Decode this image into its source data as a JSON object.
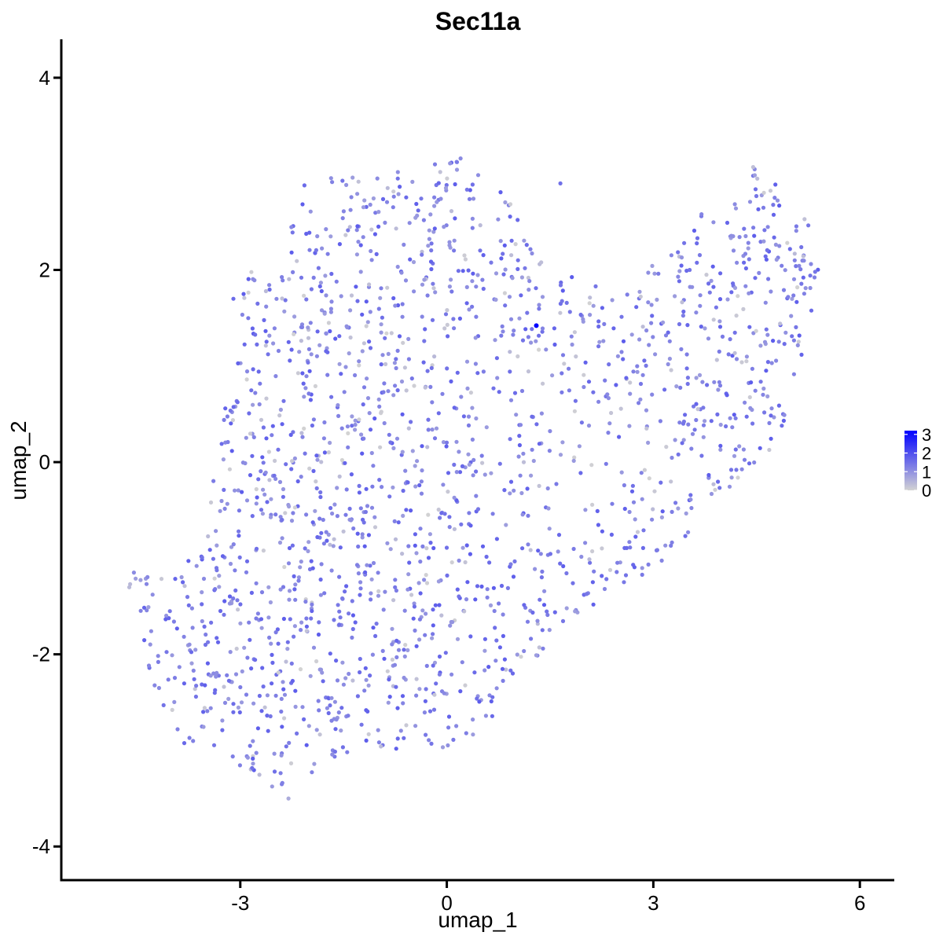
{
  "chart_data": {
    "type": "scatter",
    "title": "Sec11a",
    "xlabel": "umap_1",
    "ylabel": "umap_2",
    "xlim": [
      -5.6,
      6.5
    ],
    "ylim": [
      -4.35,
      4.4
    ],
    "x_ticks": [
      -3,
      0,
      3,
      6
    ],
    "y_ticks": [
      -4,
      -2,
      0,
      2,
      4
    ],
    "x_tick_labels": [
      "-3",
      "0",
      "3",
      "6"
    ],
    "y_tick_labels": [
      "-4",
      "-2",
      "0",
      "2",
      "4"
    ],
    "grid": false,
    "color_scale": {
      "low": "#d3d3d3",
      "high": "#0000ff",
      "min": 0,
      "max": 3.2,
      "breaks": [
        0,
        1,
        2,
        3
      ],
      "labels": [
        "0",
        "1",
        "2",
        "3"
      ],
      "legend_position": "right"
    },
    "n_points_approx": 1900,
    "highlighted_point": {
      "x": 1.3,
      "y": 1.42,
      "value": 3.2
    },
    "points_sample": [
      {
        "x": 0.2,
        "y": 3.16,
        "value": 1.1
      },
      {
        "x": 4.45,
        "y": 3.07,
        "value": 0.3
      },
      {
        "x": -4.6,
        "y": -1.27,
        "value": 0.4
      },
      {
        "x": -2.3,
        "y": -3.5,
        "value": 0.6
      },
      {
        "x": 5.35,
        "y": 1.98,
        "value": 1.4
      },
      {
        "x": 3.7,
        "y": 2.58,
        "value": 1.2
      },
      {
        "x": 1.65,
        "y": 2.9,
        "value": 1.5
      },
      {
        "x": -3.1,
        "y": 1.7,
        "value": 1.6
      }
    ]
  }
}
